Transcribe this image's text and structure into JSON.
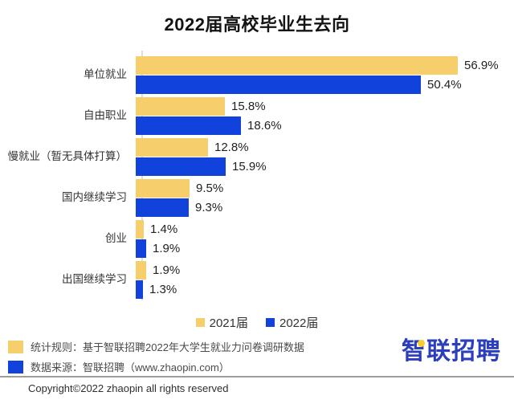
{
  "chart": {
    "title": "2022届高校毕业生去向"
  },
  "chart_data": {
    "type": "bar",
    "orientation": "horizontal",
    "title": "2022届高校毕业生去向",
    "categories": [
      "单位就业",
      "自由职业",
      "慢就业（暂无具体打算）",
      "国内继续学习",
      "创业",
      "出国继续学习"
    ],
    "series": [
      {
        "name": "2021届",
        "color": "#F6CE6B",
        "values": [
          56.9,
          15.8,
          12.8,
          9.5,
          1.4,
          1.9
        ]
      },
      {
        "name": "2022届",
        "color": "#1143DC",
        "values": [
          50.4,
          18.6,
          15.9,
          9.3,
          1.9,
          1.3
        ]
      }
    ],
    "value_suffix": "%",
    "xlim": [
      0,
      60
    ],
    "xlabel": "",
    "ylabel": "",
    "grid": false,
    "legend_position": "bottom"
  },
  "footnotes": {
    "items": [
      {
        "icon": "yellow-square",
        "swatch_color": "#F6CE6B",
        "text": "统计规则：基于智联招聘2022年大学生就业力问卷调研数据"
      },
      {
        "icon": "blue-square",
        "swatch_color": "#1143DC",
        "text": "数据来源：智联招聘（www.zhaopin.com）"
      }
    ]
  },
  "logo": {
    "text": "智联招聘"
  },
  "footer": {
    "copyright": "Copyright©2022 zhaopin all rights reserved"
  },
  "colors": {
    "bar_yellow": "#F6CE6B",
    "bar_blue": "#1143DC",
    "logo_blue": "#2B3FBE",
    "logo_dot": "#F6CF2E",
    "divider": "#9E9E9E",
    "axis": "#DDDDDD"
  }
}
